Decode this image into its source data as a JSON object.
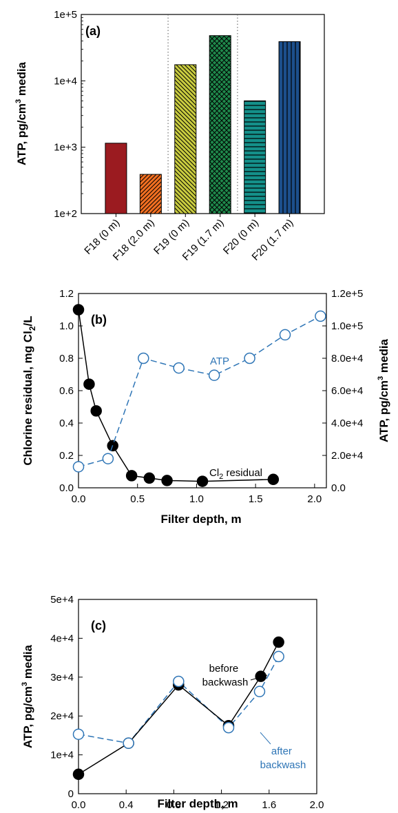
{
  "chart_data": [
    {
      "panel": "(a)",
      "type": "bar",
      "ylabel": "ATP, pg/cm³ media",
      "ylabel_parts": {
        "pre": "ATP, pg/cm",
        "sup": "3",
        "post": " media"
      },
      "yscale": "log",
      "ylim": [
        100,
        100000
      ],
      "yticks": [
        100,
        1000,
        10000,
        100000
      ],
      "ytick_labels": [
        "1e+2",
        "1e+3",
        "1e+4",
        "1e+5"
      ],
      "categories": [
        "F18 (0 m)",
        "F18 (2.0 m)",
        "F19 (0 m)",
        "F19 (1.7 m)",
        "F20 (0 m)",
        "F20 (1.7 m)"
      ],
      "values": [
        1150,
        390,
        17500,
        48000,
        5000,
        39000
      ],
      "bar_colors": [
        "#9b1b20",
        "#f26f21",
        "#c9cc3f",
        "#1f8a4c",
        "#14908a",
        "#1c4f8c"
      ],
      "bar_patterns": [
        "solid",
        "diag-right",
        "diag-left",
        "crosshatch",
        "horizontal",
        "vertical"
      ],
      "group_dividers": true
    },
    {
      "panel": "(b)",
      "type": "line",
      "xlabel": "Filter depth, m",
      "xlim": [
        0,
        2.1
      ],
      "xticks": [
        0,
        0.5,
        1.0,
        1.5,
        2.0
      ],
      "xtick_labels": [
        "0.0",
        "0.5",
        "1.0",
        "1.5",
        "2.0"
      ],
      "ylabel_left": "Chlorine residual, mg Cl₂/L",
      "ylabel_left_parts": {
        "pre": "Chlorine residual, mg Cl",
        "sub": "2",
        "post": "/L"
      },
      "ylim_left": [
        0,
        1.2
      ],
      "yticks_left": [
        0,
        0.2,
        0.4,
        0.6,
        0.8,
        1.0,
        1.2
      ],
      "ytick_labels_left": [
        "0.0",
        "0.2",
        "0.4",
        "0.6",
        "0.8",
        "1.0",
        "1.2"
      ],
      "ylabel_right": "ATP, pg/cm³ media",
      "ylabel_right_parts": {
        "pre": "ATP, pg/cm",
        "sup": "3",
        "post": " media"
      },
      "ylim_right": [
        0,
        120000
      ],
      "yticks_right": [
        0,
        20000,
        40000,
        60000,
        80000,
        100000,
        120000
      ],
      "ytick_labels_right": [
        "0.0",
        "2.0e+4",
        "4.0e+4",
        "6.0e+4",
        "8.0e+4",
        "1.0e+5",
        "1.2e+5"
      ],
      "series": [
        {
          "name": "Cl₂ residual",
          "name_parts": {
            "pre": "Cl",
            "sub": "2",
            "post": " residual"
          },
          "axis": "left",
          "marker": "filled-circle",
          "line": "solid",
          "color": "#000000",
          "x": [
            0.0,
            0.09,
            0.15,
            0.29,
            0.45,
            0.6,
            0.75,
            1.05,
            1.65
          ],
          "y": [
            1.1,
            0.64,
            0.475,
            0.26,
            0.075,
            0.06,
            0.045,
            0.04,
            0.052
          ]
        },
        {
          "name": "ATP",
          "axis": "right",
          "marker": "open-circle",
          "line": "dashed",
          "color": "#2e75b6",
          "x": [
            0.0,
            0.25,
            0.55,
            0.85,
            1.15,
            1.45,
            1.75,
            2.05
          ],
          "y": [
            13000,
            18000,
            80000,
            74000,
            69500,
            80000,
            94500,
            106000
          ]
        }
      ]
    },
    {
      "panel": "(c)",
      "type": "line",
      "xlabel": "Filter depth, m",
      "xlim": [
        0,
        2.0
      ],
      "xticks": [
        0,
        0.4,
        0.8,
        1.2,
        1.6,
        2.0
      ],
      "xtick_labels": [
        "0.0",
        "0.4",
        "0.8",
        "1.2",
        "1.6",
        "2.0"
      ],
      "ylabel": "ATP, pg/cm³ media",
      "ylabel_parts": {
        "pre": "ATP, pg/cm",
        "sup": "3",
        "post": " media"
      },
      "ylim": [
        0,
        50000
      ],
      "yticks": [
        0,
        10000,
        20000,
        30000,
        40000,
        50000
      ],
      "ytick_labels": [
        "0",
        "1e+4",
        "2e+4",
        "3e+4",
        "4e+4",
        "5e+4"
      ],
      "series": [
        {
          "name": "before backwash",
          "label_lines": [
            "before",
            "backwash"
          ],
          "marker": "filled-circle",
          "line": "solid",
          "color": "#000000",
          "x": [
            0.0,
            0.42,
            0.84,
            1.26,
            1.53,
            1.68
          ],
          "y": [
            5000,
            13000,
            28000,
            17500,
            30200,
            39000
          ]
        },
        {
          "name": "after backwash",
          "label_lines": [
            "after",
            "backwash"
          ],
          "marker": "open-circle",
          "line": "dashed",
          "color": "#2e75b6",
          "x": [
            0.0,
            0.42,
            0.84,
            1.26,
            1.52,
            1.68
          ],
          "y": [
            15300,
            13000,
            28900,
            17000,
            26300,
            35300
          ]
        }
      ]
    }
  ]
}
